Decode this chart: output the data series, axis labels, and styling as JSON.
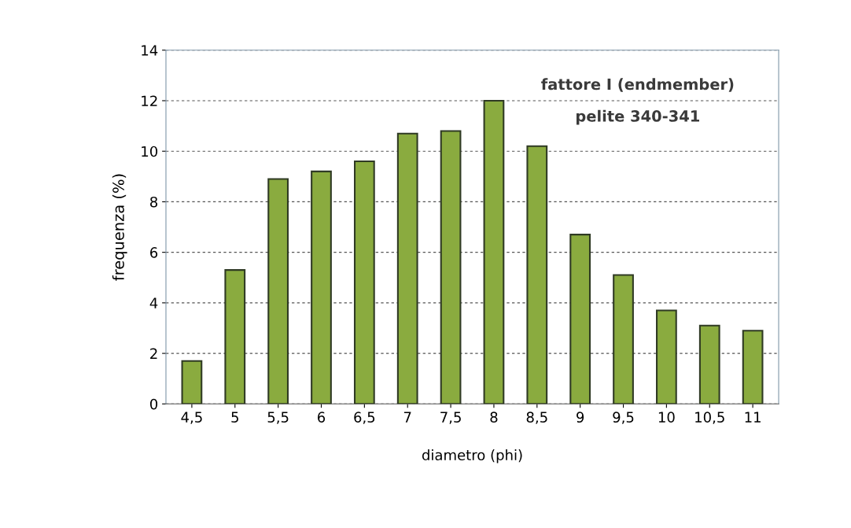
{
  "chart_data": {
    "type": "bar",
    "categories": [
      "4,5",
      "5",
      "5,5",
      "6",
      "6,5",
      "7",
      "7,5",
      "8",
      "8,5",
      "9",
      "9,5",
      "10",
      "10,5",
      "11"
    ],
    "values": [
      1.7,
      5.3,
      8.9,
      9.2,
      9.6,
      10.7,
      10.8,
      12.0,
      10.2,
      6.7,
      5.1,
      3.7,
      3.1,
      2.9
    ],
    "color": "#8aab3f",
    "xlabel": "diametro (phi)",
    "ylabel": "frequenza (%)",
    "ylim": [
      0,
      14
    ],
    "yticks": [
      0,
      2,
      4,
      6,
      8,
      10,
      12,
      14
    ],
    "grid": "y",
    "annotations": [
      "fattore I (endmember)",
      "pelite 340-341"
    ]
  }
}
